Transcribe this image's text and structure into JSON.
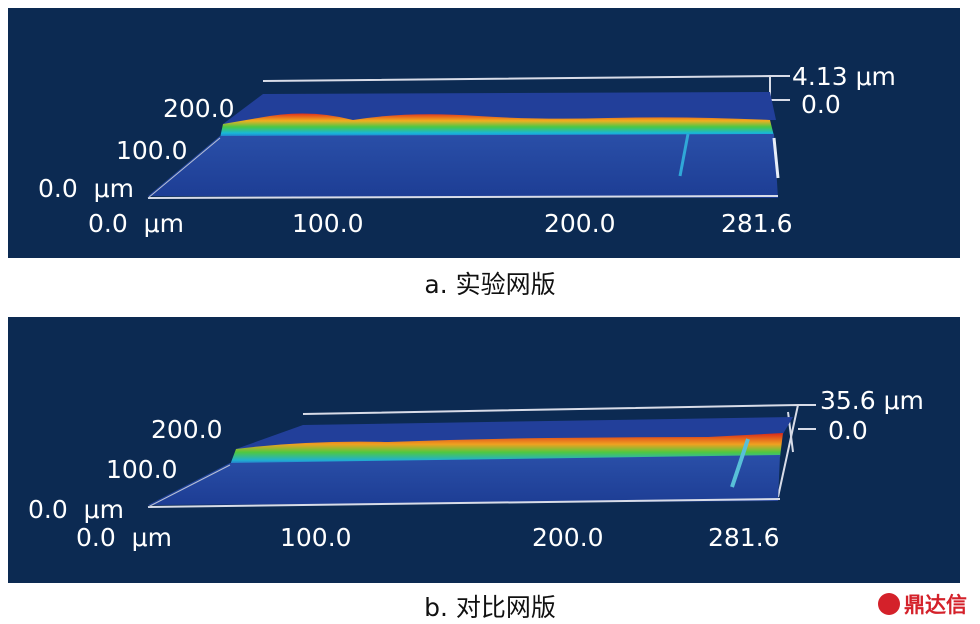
{
  "panel_a": {
    "z_max": "4.13",
    "z_unit": "μm",
    "z_zero": "0.0",
    "y_ticks": [
      "200.0",
      "100.0",
      "0.0"
    ],
    "y_unit": "μm",
    "x_ticks": [
      "0.0",
      "100.0",
      "200.0",
      "281.6"
    ],
    "x_unit": "μm",
    "caption": "a. 实验网版"
  },
  "panel_b": {
    "z_max": "35.6",
    "z_unit": "μm",
    "z_zero": "0.0",
    "y_ticks": [
      "200.0",
      "100.0",
      "0.0"
    ],
    "y_unit": "μm",
    "x_ticks": [
      "0.0",
      "100.0",
      "200.0",
      "281.6"
    ],
    "x_unit": "μm",
    "caption": "b. 对比网版"
  },
  "watermark": "鼎达信"
}
